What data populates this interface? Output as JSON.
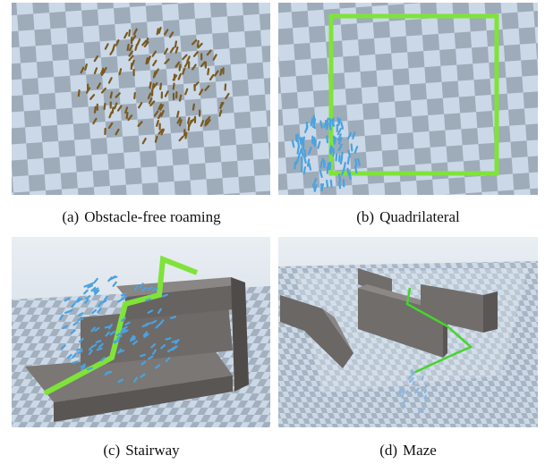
{
  "figure": {
    "panels": [
      {
        "label": "(a)",
        "caption": "Obstacle-free roaming"
      },
      {
        "label": "(b)",
        "caption": "Quadrilateral"
      },
      {
        "label": "(c)",
        "caption": "Stairway"
      },
      {
        "label": "(d)",
        "caption": "Maze"
      }
    ]
  }
}
